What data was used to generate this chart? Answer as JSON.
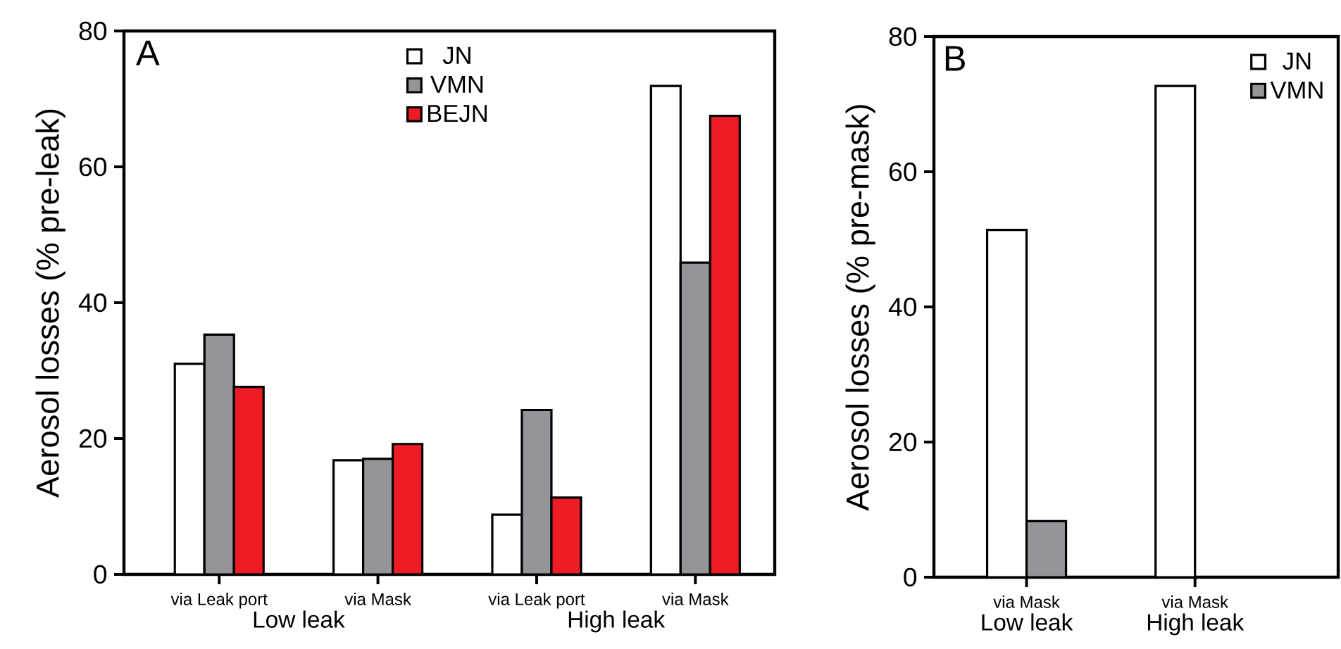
{
  "chart_data": [
    {
      "type": "bar",
      "title": "A",
      "ylabel": "Aerosol losses (% pre-leak)",
      "categories": [
        "via Leak port",
        "via Mask",
        "via Leak port",
        "via Mask"
      ],
      "series": [
        {
          "name": "JN",
          "color": "#ffffff",
          "values": [
            31,
            16.8,
            8.8,
            71.9
          ]
        },
        {
          "name": "VMN",
          "color": "#939598",
          "values": [
            35.3,
            17,
            24.2,
            45.9
          ]
        },
        {
          "name": "BEJN",
          "color": "#ed1c24",
          "values": [
            27.6,
            19.2,
            11.3,
            67.5
          ]
        }
      ],
      "ylim": [
        0,
        80
      ],
      "yticks": [
        0,
        20,
        40,
        60,
        80
      ],
      "legend": "top",
      "annotations": [
        "Low leak",
        "High leak"
      ]
    },
    {
      "type": "bar",
      "title": "B",
      "ylabel": "Aerosol losses (%  pre-mask)",
      "categories": [
        "via Mask",
        "via Mask"
      ],
      "series": [
        {
          "name": "JN",
          "color": "#ffffff",
          "values": [
            51.4,
            72.7
          ]
        },
        {
          "name": "VMN",
          "color": "#939598",
          "values": [
            8.3,
            null
          ]
        }
      ],
      "ylim": [
        0,
        80
      ],
      "yticks": [
        0,
        20,
        40,
        60,
        80
      ],
      "legend": "top right",
      "annotations": [
        "Low leak",
        "High leak"
      ]
    }
  ]
}
